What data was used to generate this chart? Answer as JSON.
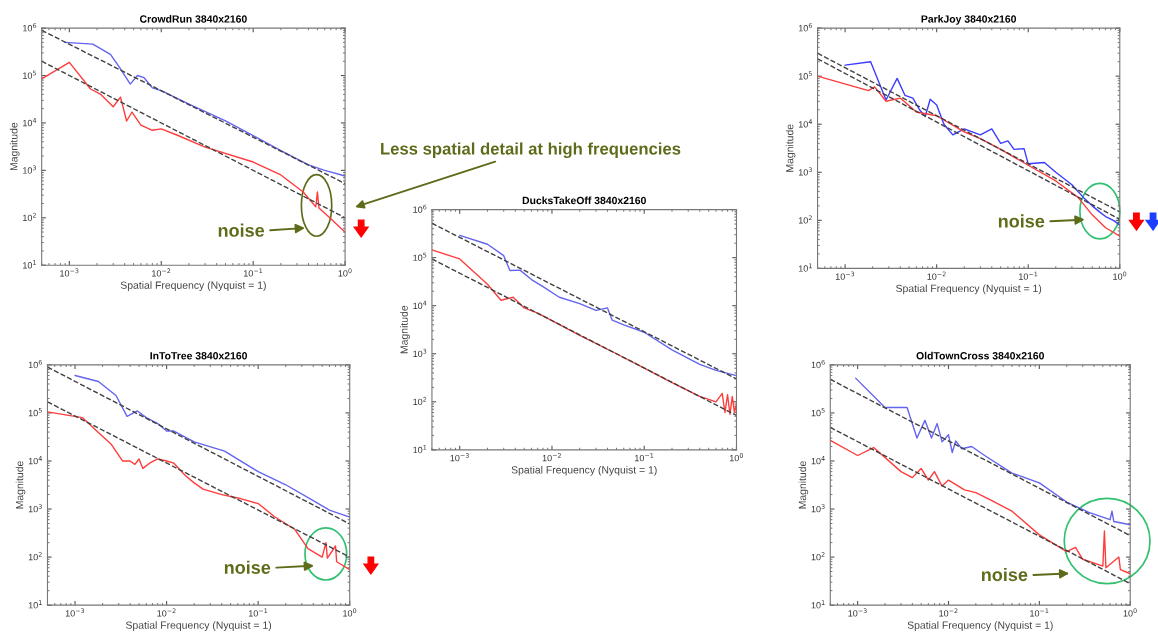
{
  "chart_data": [
    {
      "type": "line",
      "title": "CrowdRun 3840x2160",
      "xlabel": "Spatial Frequency (Nyquist = 1)",
      "ylabel": "Magnitude",
      "log": "xy",
      "xlim": [
        0.0005,
        1
      ],
      "ylim": [
        10,
        1000000
      ],
      "xticks": [
        {
          "value": 0.001,
          "label": "10$^{−3}$"
        },
        {
          "value": 0.01,
          "label": "10$^{−2}$"
        },
        {
          "value": 0.1,
          "label": "10$^{−1}$"
        },
        {
          "value": 1,
          "label": "10$^{0}$"
        }
      ],
      "yticks": [
        {
          "value": 10,
          "label": "10$^{1}$"
        },
        {
          "value": 100,
          "label": "10$^{2}$"
        },
        {
          "value": 1000,
          "label": "10$^{3}$"
        },
        {
          "value": 10000,
          "label": "10$^{4}$"
        },
        {
          "value": 100000,
          "label": "10$^{5}$"
        },
        {
          "value": 1000000,
          "label": "10$^{6}$"
        }
      ],
      "series": [
        {
          "color": "#6464f0",
          "x": [
            0.0009,
            0.0018,
            0.0028,
            0.0035,
            0.0046,
            0.0055,
            0.0065,
            0.008,
            0.01,
            0.02,
            0.05,
            0.1,
            0.2,
            0.4,
            0.6,
            1.0
          ],
          "values": [
            500000,
            460000,
            280000,
            150000,
            66000,
            100000,
            90000,
            55000,
            48000,
            25000,
            11000,
            5400,
            2600,
            1300,
            1000,
            760
          ]
        },
        {
          "color": "#ff3c3c",
          "x": [
            0.0005,
            0.001,
            0.0017,
            0.0022,
            0.003,
            0.0036,
            0.0042,
            0.0048,
            0.006,
            0.008,
            0.01,
            0.015,
            0.03,
            0.1,
            0.2,
            0.35,
            0.48,
            0.5,
            0.52,
            0.7,
            0.9,
            1.0
          ],
          "values": [
            85000,
            190000,
            52000,
            40000,
            22000,
            35000,
            11000,
            17000,
            9000,
            7000,
            7500,
            5500,
            3100,
            1500,
            800,
            350,
            170,
            350,
            160,
            95,
            60,
            50
          ]
        },
        {
          "color": "#404040",
          "line_style": "dashed",
          "x": [
            0.0005,
            1
          ],
          "values": [
            900000,
            525
          ]
        },
        {
          "color": "#404040",
          "line_style": "dashed",
          "x": [
            0.0005,
            1
          ],
          "values": [
            200000,
            100
          ]
        }
      ],
      "annotations": [
        "noise",
        "Less spatial detail at high frequencies"
      ]
    },
    {
      "type": "line",
      "title": "ParkJoy 3840x2160",
      "xlabel": "Spatial Frequency (Nyquist = 1)",
      "ylabel": "Magnitude",
      "log": "xy",
      "xlim": [
        0.0005,
        1
      ],
      "ylim": [
        10,
        1000000
      ],
      "xticks": [
        {
          "value": 0.001,
          "label": "10$^{−3}$"
        },
        {
          "value": 0.01,
          "label": "10$^{−2}$"
        },
        {
          "value": 0.1,
          "label": "10$^{−1}$"
        },
        {
          "value": 1,
          "label": "10$^{0}$"
        }
      ],
      "yticks": [
        {
          "value": 10,
          "label": "10$^{1}$"
        },
        {
          "value": 100,
          "label": "10$^{2}$"
        },
        {
          "value": 1000,
          "label": "10$^{3}$"
        },
        {
          "value": 10000,
          "label": "10$^{4}$"
        },
        {
          "value": 100000,
          "label": "10$^{5}$"
        },
        {
          "value": 1000000,
          "label": "10$^{6}$"
        }
      ],
      "series": [
        {
          "color": "#3c3cff",
          "x": [
            0.001,
            0.0019,
            0.0028,
            0.0037,
            0.0045,
            0.0055,
            0.0065,
            0.0075,
            0.0085,
            0.01,
            0.012,
            0.015,
            0.02,
            0.03,
            0.04,
            0.05,
            0.06,
            0.07,
            0.09,
            0.1,
            0.15,
            0.2,
            0.3,
            0.4,
            0.5,
            0.6,
            0.7,
            0.85,
            1.0
          ],
          "values": [
            170000,
            200000,
            32000,
            90000,
            40000,
            35000,
            20000,
            14500,
            33000,
            25000,
            10000,
            6000,
            8000,
            6000,
            8000,
            4000,
            4500,
            3000,
            3100,
            1500,
            1600,
            1000,
            550,
            300,
            200,
            150,
            120,
            100,
            80
          ]
        },
        {
          "color": "#ff3c3c",
          "x": [
            0.0005,
            0.0018,
            0.0021,
            0.0028,
            0.004,
            0.006,
            0.01,
            0.02,
            0.03,
            0.05,
            0.1,
            0.2,
            0.35,
            0.5,
            0.7,
            1.0
          ],
          "values": [
            100000,
            50000,
            60000,
            30000,
            35000,
            18000,
            15000,
            6900,
            5000,
            3000,
            1400,
            660,
            300,
            130,
            70,
            47
          ]
        },
        {
          "color": "#404040",
          "line_style": "dashed",
          "x": [
            0.0005,
            1
          ],
          "values": [
            300000,
            150
          ]
        },
        {
          "color": "#404040",
          "line_style": "dashed",
          "x": [
            0.0005,
            1
          ],
          "values": [
            230000,
            105
          ]
        }
      ],
      "annotations": [
        "noise"
      ]
    },
    {
      "type": "line",
      "title": "DucksTakeOff 3840x2160",
      "xlabel": "Spatial Frequency (Nyquist = 1)",
      "ylabel": "Magnitude",
      "log": "xy",
      "xlim": [
        0.0005,
        1
      ],
      "ylim": [
        10,
        1000000
      ],
      "xticks": [
        {
          "value": 0.001,
          "label": "10$^{−3}$"
        },
        {
          "value": 0.01,
          "label": "10$^{−2}$"
        },
        {
          "value": 0.1,
          "label": "10$^{−1}$"
        },
        {
          "value": 1,
          "label": "10$^{0}$"
        }
      ],
      "yticks": [
        {
          "value": 10,
          "label": "10$^{1}$"
        },
        {
          "value": 100,
          "label": "10$^{2}$"
        },
        {
          "value": 1000,
          "label": "10$^{3}$"
        },
        {
          "value": 10000,
          "label": "10$^{4}$"
        },
        {
          "value": 100000,
          "label": "10$^{5}$"
        },
        {
          "value": 1000000,
          "label": "10$^{6}$"
        }
      ],
      "series": [
        {
          "color": "#6464f0",
          "x": [
            0.001,
            0.002,
            0.003,
            0.0035,
            0.0045,
            0.006,
            0.008,
            0.012,
            0.02,
            0.03,
            0.04,
            0.045,
            0.06,
            0.1,
            0.2,
            0.4,
            0.6,
            1.0
          ],
          "values": [
            290000,
            190000,
            110000,
            54000,
            55000,
            35000,
            25000,
            15000,
            11000,
            8000,
            9000,
            5000,
            4000,
            2800,
            1200,
            600,
            450,
            350
          ]
        },
        {
          "color": "#ff3c3c",
          "x": [
            0.0005,
            0.001,
            0.002,
            0.0028,
            0.0038,
            0.005,
            0.007,
            0.01,
            0.02,
            0.05,
            0.1,
            0.2,
            0.4,
            0.6,
            0.7,
            0.75,
            0.8,
            0.85,
            0.9,
            0.95,
            1.0
          ],
          "values": [
            145000,
            94000,
            28000,
            13000,
            15000,
            9000,
            7000,
            4900,
            2400,
            1000,
            500,
            250,
            130,
            100,
            150,
            60,
            140,
            55,
            130,
            60,
            90
          ]
        },
        {
          "color": "#404040",
          "line_style": "dashed",
          "x": [
            0.0005,
            1
          ],
          "values": [
            520000,
            300
          ]
        },
        {
          "color": "#404040",
          "line_style": "dashed",
          "x": [
            0.0005,
            1
          ],
          "values": [
            94000,
            52
          ]
        }
      ]
    },
    {
      "type": "line",
      "title": "InToTree 3840x2160",
      "xlabel": "Spatial Frequency (Nyquist = 1)",
      "ylabel": "Magnitude",
      "log": "xy",
      "xlim": [
        0.0005,
        1
      ],
      "ylim": [
        10,
        1000000
      ],
      "xticks": [
        {
          "value": 0.001,
          "label": "10$^{−3}$"
        },
        {
          "value": 0.01,
          "label": "10$^{−2}$"
        },
        {
          "value": 0.1,
          "label": "10$^{−1}$"
        },
        {
          "value": 1,
          "label": "10$^{0}$"
        }
      ],
      "yticks": [
        {
          "value": 10,
          "label": "10$^{1}$"
        },
        {
          "value": 100,
          "label": "10$^{2}$"
        },
        {
          "value": 1000,
          "label": "10$^{3}$"
        },
        {
          "value": 10000,
          "label": "10$^{4}$"
        },
        {
          "value": 100000,
          "label": "10$^{5}$"
        },
        {
          "value": 1000000,
          "label": "10$^{6}$"
        }
      ],
      "series": [
        {
          "color": "#6464f0",
          "x": [
            0.001,
            0.0018,
            0.0028,
            0.0037,
            0.0048,
            0.006,
            0.008,
            0.01,
            0.012,
            0.02,
            0.043,
            0.1,
            0.2,
            0.4,
            0.6,
            1.0
          ],
          "values": [
            600000,
            450000,
            230000,
            85000,
            110000,
            80000,
            60000,
            42000,
            42000,
            25000,
            16000,
            6000,
            3200,
            1500,
            950,
            680
          ]
        },
        {
          "color": "#ff3c3c",
          "x": [
            0.0005,
            0.0012,
            0.0018,
            0.0025,
            0.0033,
            0.004,
            0.0045,
            0.005,
            0.0055,
            0.0065,
            0.008,
            0.01,
            0.012,
            0.016,
            0.02,
            0.025,
            0.04,
            0.06,
            0.1,
            0.15,
            0.25,
            0.35,
            0.5,
            0.55,
            0.57,
            0.7,
            0.72,
            1.0
          ],
          "values": [
            105000,
            80000,
            39000,
            22000,
            10000,
            10000,
            8500,
            11000,
            7000,
            9000,
            11000,
            10000,
            9000,
            5000,
            3500,
            2600,
            2000,
            1700,
            1300,
            700,
            380,
            150,
            100,
            200,
            95,
            170,
            80,
            55
          ]
        },
        {
          "color": "#404040",
          "line_style": "dashed",
          "x": [
            0.0005,
            1
          ],
          "values": [
            900000,
            490
          ]
        },
        {
          "color": "#404040",
          "line_style": "dashed",
          "x": [
            0.0005,
            1
          ],
          "values": [
            170000,
            100
          ]
        }
      ],
      "annotations": [
        "noise"
      ]
    },
    {
      "type": "line",
      "title": "OldTownCross 3840x2160",
      "xlabel": "Spatial Frequency (Nyquist = 1)",
      "ylabel": "Magnitude",
      "log": "xy",
      "xlim": [
        0.0005,
        1
      ],
      "ylim": [
        10,
        1000000
      ],
      "xticks": [
        {
          "value": 0.001,
          "label": "10$^{−3}$"
        },
        {
          "value": 0.01,
          "label": "10$^{−2}$"
        },
        {
          "value": 0.1,
          "label": "10$^{−1}$"
        },
        {
          "value": 1,
          "label": "10$^{0}$"
        }
      ],
      "yticks": [
        {
          "value": 10,
          "label": "10$^{1}$"
        },
        {
          "value": 100,
          "label": "10$^{2}$"
        },
        {
          "value": 1000,
          "label": "10$^{3}$"
        },
        {
          "value": 10000,
          "label": "10$^{4}$"
        },
        {
          "value": 100000,
          "label": "10$^{5}$"
        },
        {
          "value": 1000000,
          "label": "10$^{6}$"
        }
      ],
      "series": [
        {
          "color": "#6464f0",
          "x": [
            0.00095,
            0.002,
            0.0035,
            0.0045,
            0.0055,
            0.0065,
            0.0075,
            0.0085,
            0.01,
            0.011,
            0.012,
            0.014,
            0.018,
            0.025,
            0.05,
            0.1,
            0.2,
            0.35,
            0.6,
            0.63,
            0.66,
            1.0
          ],
          "values": [
            530000,
            130000,
            130000,
            30000,
            70000,
            30000,
            60000,
            25000,
            35000,
            15000,
            26000,
            18000,
            20000,
            13000,
            5600,
            3500,
            1400,
            850,
            600,
            900,
            550,
            470
          ]
        },
        {
          "color": "#ff3c3c",
          "x": [
            0.0005,
            0.001,
            0.0015,
            0.003,
            0.004,
            0.005,
            0.006,
            0.007,
            0.0085,
            0.01,
            0.015,
            0.02,
            0.03,
            0.05,
            0.1,
            0.2,
            0.25,
            0.3,
            0.5,
            0.52,
            0.54,
            0.75,
            0.78,
            1.0
          ],
          "values": [
            27000,
            13000,
            19000,
            6000,
            4500,
            7000,
            4000,
            6000,
            3000,
            4000,
            2500,
            2200,
            1500,
            900,
            290,
            130,
            160,
            90,
            65,
            350,
            60,
            100,
            55,
            45
          ]
        },
        {
          "color": "#404040",
          "line_style": "dashed",
          "x": [
            0.0005,
            1
          ],
          "values": [
            500000,
            280
          ]
        },
        {
          "color": "#404040",
          "line_style": "dashed",
          "x": [
            0.0005,
            1
          ],
          "values": [
            50000,
            28
          ]
        }
      ],
      "annotations": [
        "noise"
      ]
    }
  ]
}
